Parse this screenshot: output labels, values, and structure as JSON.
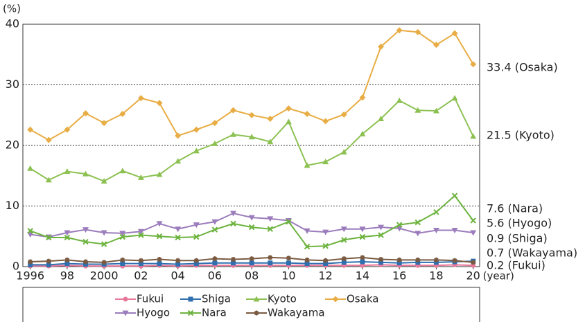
{
  "chart_data": {
    "type": "line",
    "y_label": "(%)",
    "x_label": "(year)",
    "x": [
      1996,
      1997,
      1998,
      1999,
      2000,
      2001,
      2002,
      2003,
      2004,
      2005,
      2006,
      2007,
      2008,
      2009,
      2010,
      2011,
      2012,
      2013,
      2014,
      2015,
      2016,
      2017,
      2018,
      2019,
      2020
    ],
    "xlim": [
      1995.6,
      2020.35
    ],
    "xticks": [
      1996,
      {
        "value": 1998,
        "label": "98"
      },
      2000,
      {
        "value": 2002,
        "label": "02"
      },
      {
        "value": 2004,
        "label": "04"
      },
      {
        "value": 2006,
        "label": "06"
      },
      {
        "value": 2008,
        "label": "08"
      },
      {
        "value": 2010,
        "label": "10"
      },
      {
        "value": 2012,
        "label": "12"
      },
      {
        "value": 2014,
        "label": "14"
      },
      {
        "value": 2016,
        "label": "16"
      },
      {
        "value": 2018,
        "label": "18"
      },
      {
        "value": 2020,
        "label": "20"
      }
    ],
    "ylim": [
      0,
      40
    ],
    "yticks": [
      0,
      10,
      20,
      30,
      40
    ],
    "grid": true,
    "series": [
      {
        "name": "Fukui",
        "color": "#e8789a",
        "marker": "circle",
        "values": [
          0.1,
          0.1,
          0.2,
          0.1,
          0.1,
          0.1,
          0.1,
          0.2,
          0.1,
          0.2,
          0.2,
          0.2,
          0.2,
          0.2,
          0.2,
          0.2,
          0.2,
          0.2,
          0.2,
          0.3,
          0.2,
          0.2,
          0.2,
          0.3,
          0.2
        ]
      },
      {
        "name": "Shiga",
        "color": "#2f6fb0",
        "marker": "square",
        "values": [
          0.3,
          0.3,
          0.5,
          0.4,
          0.4,
          0.5,
          0.5,
          0.5,
          0.4,
          0.5,
          0.6,
          0.6,
          0.6,
          0.6,
          0.6,
          0.5,
          0.5,
          0.7,
          0.8,
          0.7,
          0.6,
          0.7,
          0.7,
          0.8,
          0.9
        ]
      },
      {
        "name": "Kyoto",
        "color": "#8cc152",
        "marker": "triangle",
        "values": [
          16.2,
          14.3,
          15.7,
          15.3,
          14.1,
          15.8,
          14.7,
          15.2,
          17.4,
          19.1,
          20.3,
          21.8,
          21.4,
          20.6,
          23.9,
          16.7,
          17.3,
          18.9,
          21.9,
          24.4,
          27.4,
          25.8,
          25.7,
          27.8,
          21.5
        ]
      },
      {
        "name": "Osaka",
        "color": "#e8ad45",
        "marker": "diamond",
        "values": [
          22.6,
          20.9,
          22.6,
          25.3,
          23.7,
          25.2,
          27.8,
          27.0,
          21.6,
          22.6,
          23.7,
          25.8,
          25.0,
          24.4,
          26.1,
          25.2,
          24.0,
          25.1,
          27.9,
          36.3,
          39.0,
          38.7,
          36.6,
          38.5,
          33.4
        ]
      },
      {
        "name": "Hyogo",
        "color": "#9b7cbc",
        "marker": "down-triangle",
        "values": [
          5.3,
          4.9,
          5.6,
          6.1,
          5.6,
          5.5,
          5.8,
          7.1,
          6.2,
          6.9,
          7.4,
          8.8,
          8.1,
          7.9,
          7.6,
          5.9,
          5.7,
          6.2,
          6.2,
          6.5,
          6.3,
          5.5,
          6.0,
          6.0,
          5.6
        ]
      },
      {
        "name": "Nara",
        "color": "#6db33f",
        "marker": "x",
        "values": [
          5.9,
          4.8,
          4.8,
          4.1,
          3.7,
          4.9,
          5.2,
          5.0,
          4.8,
          4.9,
          6.1,
          7.1,
          6.5,
          6.2,
          7.4,
          3.3,
          3.4,
          4.4,
          4.9,
          5.2,
          6.9,
          7.3,
          9.0,
          11.7,
          7.6
        ]
      },
      {
        "name": "Wakayama",
        "color": "#7a5a40",
        "marker": "star",
        "values": [
          0.8,
          0.9,
          1.1,
          0.8,
          0.7,
          1.1,
          1.0,
          1.2,
          1.0,
          1.0,
          1.3,
          1.2,
          1.3,
          1.5,
          1.4,
          1.1,
          1.0,
          1.3,
          1.5,
          1.2,
          1.1,
          1.1,
          1.1,
          1.0,
          0.7
        ]
      }
    ],
    "annotations": [
      "33.4 (Osaka)",
      "21.5 (Kyoto)",
      "7.6 (Nara)",
      "5.6 (Hyogo)",
      "0.9 (Shiga)",
      "0.7 (Wakayama)",
      "0.2 (Fukui)"
    ]
  }
}
